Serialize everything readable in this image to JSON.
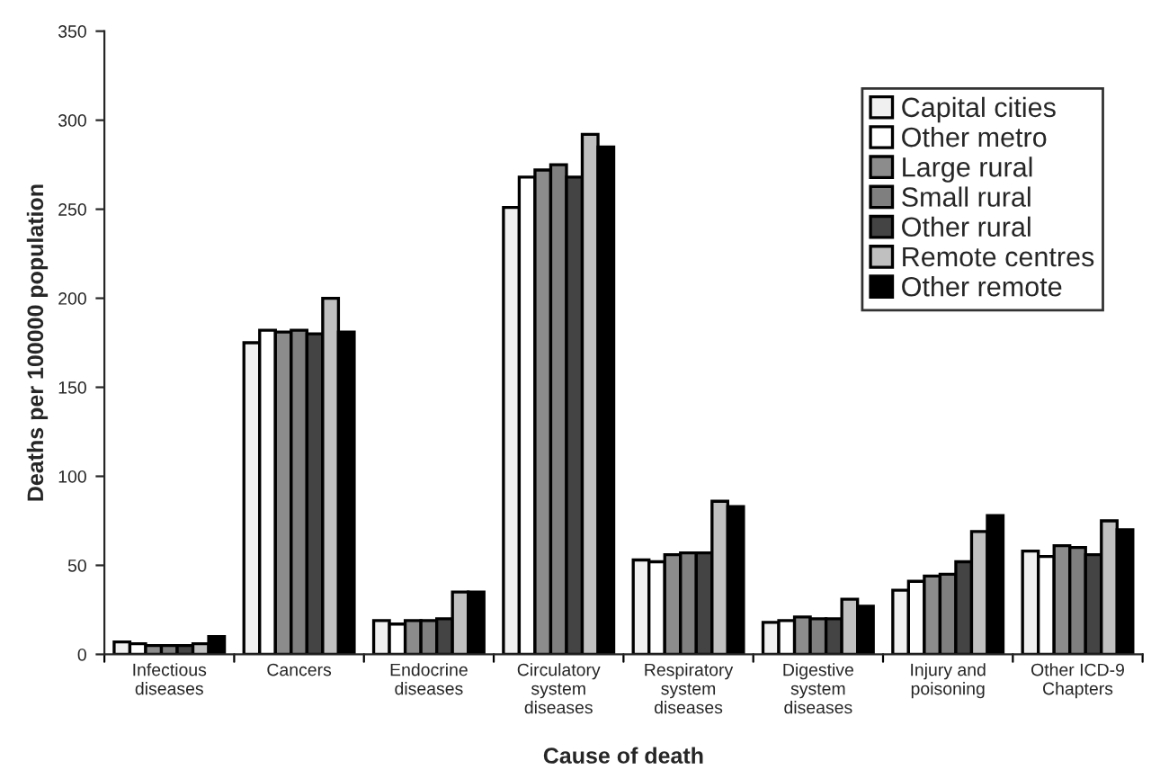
{
  "chart_data": {
    "type": "bar",
    "xlabel": "Cause of death",
    "ylabel": "Deaths per 100000 population",
    "categories": [
      "Infectious\ndiseases",
      "Cancers",
      "Endocrine\ndiseases",
      "Circulatory\nsystem\ndiseases",
      "Respiratory\nsystem\ndiseases",
      "Digestive\nsystem\ndiseases",
      "Injury and\npoisoning",
      "Other ICD-9\nChapters"
    ],
    "series": [
      {
        "name": "Capital cities",
        "color": "#f0f0f0",
        "values": [
          7,
          175,
          19,
          251,
          53,
          18,
          36,
          58
        ]
      },
      {
        "name": "Other metro",
        "color": "#ffffff",
        "values": [
          6,
          182,
          17,
          268,
          52,
          19,
          41,
          55
        ]
      },
      {
        "name": "Large rural",
        "color": "#8c8c8c",
        "values": [
          5,
          181,
          19,
          272,
          56,
          21,
          44,
          61
        ]
      },
      {
        "name": "Small rural",
        "color": "#7f7f7f",
        "values": [
          5,
          182,
          19,
          275,
          57,
          20,
          45,
          60
        ]
      },
      {
        "name": "Other rural",
        "color": "#444444",
        "values": [
          5,
          180,
          20,
          268,
          57,
          20,
          52,
          56
        ]
      },
      {
        "name": "Remote centres",
        "color": "#c0c0c0",
        "values": [
          6,
          200,
          35,
          292,
          86,
          31,
          69,
          75
        ]
      },
      {
        "name": "Other remote",
        "color": "#000000",
        "values": [
          10,
          181,
          35,
          285,
          83,
          27,
          78,
          70
        ]
      }
    ],
    "ylim": [
      0,
      350
    ],
    "yticks": [
      0,
      50,
      100,
      150,
      200,
      250,
      300,
      350
    ],
    "grid": false,
    "legend": "top right"
  }
}
